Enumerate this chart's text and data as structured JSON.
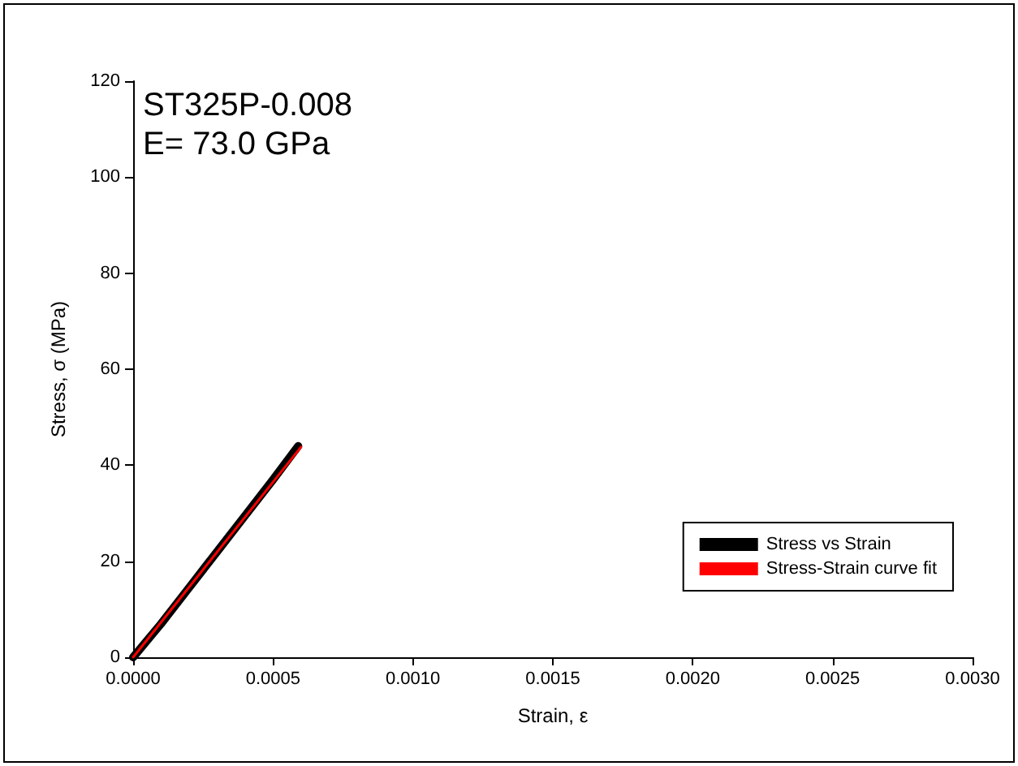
{
  "chart_data": {
    "type": "line",
    "xlabel": "Strain, ε",
    "ylabel": "Stress, σ (MPa)",
    "annotations": [
      "ST325P-0.008",
      "E= 73.0 GPa"
    ],
    "series": [
      {
        "name": "Stress vs Strain",
        "color": "#000000",
        "x": [
          0,
          0.0001,
          0.0002,
          0.0003,
          0.0004,
          0.0005,
          0.00059
        ],
        "values": [
          0,
          7,
          14.5,
          22,
          29.5,
          37,
          44
        ]
      },
      {
        "name": "Stress-Strain curve fit",
        "color": "#ff0000",
        "x": [
          0,
          0.0006
        ],
        "values": [
          0,
          43.8
        ]
      }
    ],
    "xlim": [
      0,
      0.003
    ],
    "xticks": [
      {
        "value": 0,
        "label": "0.0000"
      },
      {
        "value": 0.0005,
        "label": "0.0005"
      },
      {
        "value": 0.001,
        "label": "0.0010"
      },
      {
        "value": 0.0015,
        "label": "0.0015"
      },
      {
        "value": 0.002,
        "label": "0.0020"
      },
      {
        "value": 0.0025,
        "label": "0.0025"
      },
      {
        "value": 0.003,
        "label": "0.0030"
      }
    ],
    "ylim": [
      0,
      120
    ],
    "yticks": [
      0,
      20,
      40,
      60,
      80,
      100,
      120
    ],
    "grid": false,
    "legend": "bottom right",
    "marker": "none",
    "line_style": "solid"
  }
}
